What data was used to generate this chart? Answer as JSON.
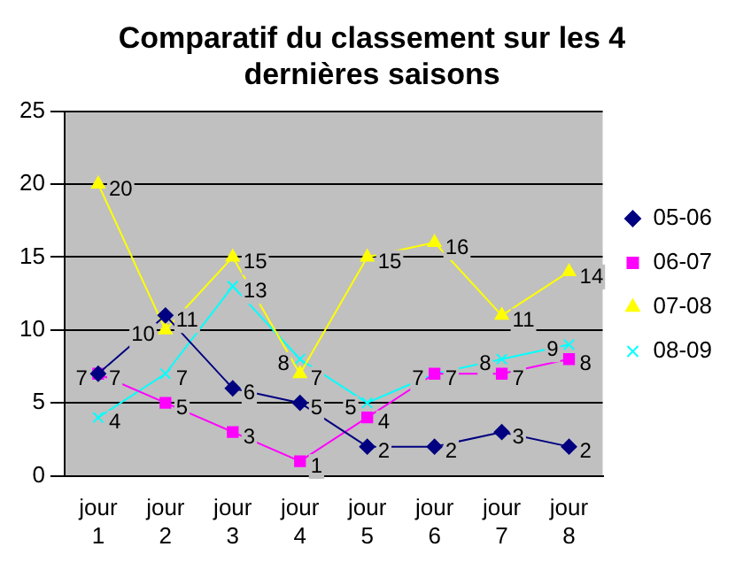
{
  "chart_data": {
    "type": "line",
    "title": "Comparatif du classement sur les 4 dernières saisons",
    "categories": [
      "jour 1",
      "jour 2",
      "jour 3",
      "jour 4",
      "jour 5",
      "jour 6",
      "jour 7",
      "jour 8"
    ],
    "series": [
      {
        "name": "05-06",
        "color": "#000080",
        "marker": "diamond",
        "values": [
          7,
          11,
          6,
          5,
          2,
          2,
          3,
          2
        ]
      },
      {
        "name": "06-07",
        "color": "#ff00ff",
        "marker": "square",
        "values": [
          7,
          5,
          3,
          1,
          4,
          7,
          7,
          8
        ]
      },
      {
        "name": "07-08",
        "color": "#ffff00",
        "marker": "triangle",
        "values": [
          20,
          10,
          15,
          7,
          15,
          16,
          11,
          14
        ]
      },
      {
        "name": "08-09",
        "color": "#00ffff",
        "marker": "cross",
        "values": [
          4,
          7,
          13,
          8,
          5,
          7,
          8,
          9
        ]
      }
    ],
    "ylim": [
      0,
      25
    ],
    "yticks": [
      0,
      5,
      10,
      15,
      20,
      25
    ],
    "grid": "y",
    "legend": "right",
    "data_labels": true
  }
}
